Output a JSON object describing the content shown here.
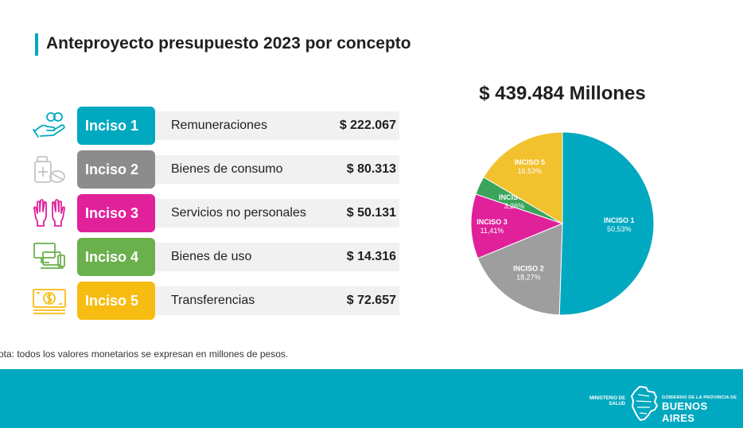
{
  "title": "Anteproyecto presupuesto 2023 por concepto",
  "total": "$ 439.484 Millones",
  "rows": [
    {
      "tag": "Inciso 1",
      "label": "Remuneraciones",
      "value": "$ 222.067",
      "color": "#00a8c0",
      "icon": "hand-coins-icon"
    },
    {
      "tag": "Inciso 2",
      "label": "Bienes de consumo",
      "value": "$ 80.313",
      "color": "#8c8c8c",
      "icon": "medicine-icon"
    },
    {
      "tag": "Inciso 3",
      "label": "Servicios no personales",
      "value": "$ 50.131",
      "color": "#e0219a",
      "icon": "gloves-icon"
    },
    {
      "tag": "Inciso 4",
      "label": "Bienes de uso",
      "value": "$ 14.316",
      "color": "#6ab04c",
      "icon": "devices-icon"
    },
    {
      "tag": "Inciso 5",
      "label": "Transferencias",
      "value": "$ 72.657",
      "color": "#f7bc12",
      "icon": "banknotes-icon"
    }
  ],
  "note": "ota: todos los valores monetarios se expresan en millones de pesos.",
  "footer": {
    "ministry": "MINISTERIO DE SALUD",
    "gov_small": "GOBIERNO DE LA PROVINCIA DE",
    "gov_big": "BUENOS AIRES"
  },
  "chart_data": {
    "type": "pie",
    "slices": [
      {
        "name": "INCISO 1",
        "value": 50.53,
        "label": "50,53%",
        "color": "#00a8c0"
      },
      {
        "name": "INCISO 2",
        "value": 18.27,
        "label": "18,27%",
        "color": "#9e9e9e"
      },
      {
        "name": "INCISO 3",
        "value": 11.41,
        "label": "11,41%",
        "color": "#e0219a"
      },
      {
        "name": "INCISO 4",
        "value": 3.26,
        "label": "3,26%",
        "color": "#3aa55a"
      },
      {
        "name": "INCISO 5",
        "value": 16.53,
        "label": "16,53%",
        "color": "#f2c12e"
      }
    ]
  }
}
